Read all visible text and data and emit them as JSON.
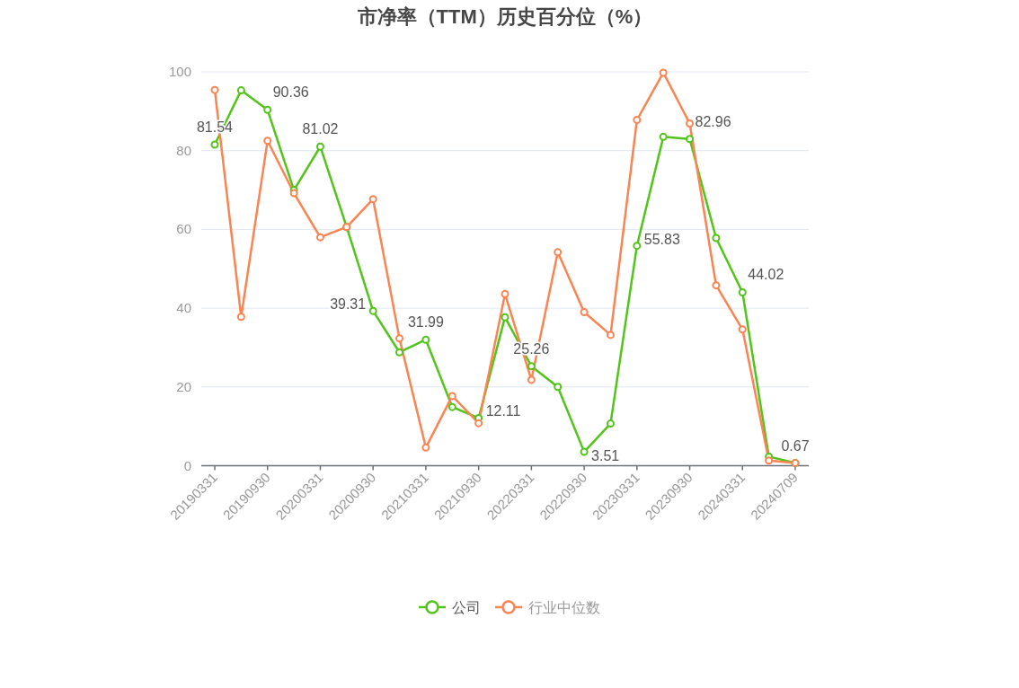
{
  "chart_data": {
    "type": "line",
    "title": "市净率（TTM）历史百分位（%）",
    "categories": [
      "20190331",
      null,
      "20190930",
      null,
      "20200331",
      null,
      "20200930",
      null,
      "20210331",
      null,
      "20210930",
      null,
      "20220331",
      null,
      "20220930",
      null,
      "20230331",
      null,
      "20230930",
      null,
      "20240331",
      null,
      "20240709"
    ],
    "ylim": [
      0,
      100
    ],
    "yticks": [
      0,
      20,
      40,
      60,
      80,
      100
    ],
    "grid": "y",
    "legend": "bottom",
    "marker": "circle",
    "line_style": "solid",
    "series": [
      {
        "name": "公司",
        "color": "#52c41a",
        "values": [
          81.54,
          95.3,
          90.36,
          70.0,
          81.02,
          60.6,
          39.31,
          28.8,
          31.99,
          14.9,
          12.11,
          37.7,
          25.26,
          20.0,
          3.51,
          10.7,
          55.83,
          83.5,
          82.96,
          57.8,
          44.02,
          2.3,
          0.67
        ],
        "value_labels": [
          "81.54",
          null,
          "90.36",
          null,
          "81.02",
          null,
          "39.31",
          null,
          "31.99",
          null,
          "12.11",
          null,
          "25.26",
          null,
          "3.51",
          null,
          "55.83",
          null,
          "82.96",
          null,
          "44.02",
          null,
          "0.67"
        ]
      },
      {
        "name": "行业中位数",
        "color": "#fa8452",
        "values": [
          95.4,
          37.8,
          82.5,
          69.2,
          58.0,
          60.6,
          67.7,
          32.3,
          4.6,
          17.7,
          10.8,
          43.6,
          21.8,
          54.2,
          39.0,
          33.2,
          87.8,
          99.8,
          86.9,
          45.8,
          34.6,
          1.3,
          0.7
        ]
      }
    ]
  }
}
